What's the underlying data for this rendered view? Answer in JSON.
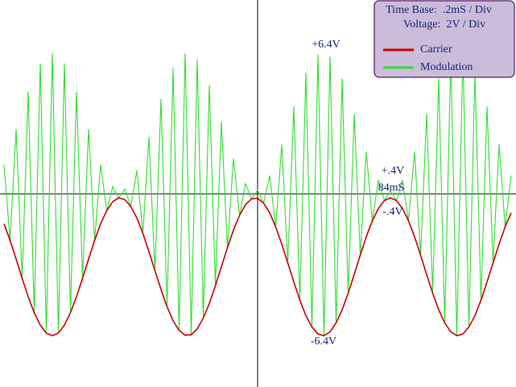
{
  "chart_data": {
    "type": "line",
    "time_base": "Time Base:  .2mS / Div",
    "voltage_scale": "Voltage:  2V / Div",
    "annotations": [
      "+6.4V",
      "+.4V",
      "84mS",
      "-.4V",
      "-6.4V"
    ],
    "xlim": [
      -1.0667,
      1.0667
    ],
    "ylim": [
      -7.97,
      8.03
    ],
    "x": [
      -1.05,
      -1.025,
      -1,
      -0.975,
      -0.95,
      -0.925,
      -0.9,
      -0.875,
      -0.85,
      -0.825,
      -0.8,
      -0.775,
      -0.75,
      -0.725,
      -0.7,
      -0.675,
      -0.65,
      -0.625,
      -0.6,
      -0.575,
      -0.55,
      -0.525,
      -0.5,
      -0.475,
      -0.45,
      -0.425,
      -0.4,
      -0.375,
      -0.35,
      -0.325,
      -0.3,
      -0.275,
      -0.25,
      -0.225,
      -0.2,
      -0.175,
      -0.15,
      -0.125,
      -0.1,
      -0.075,
      -0.05,
      -0.025,
      0,
      0.025,
      0.05,
      0.075,
      0.1,
      0.125,
      0.15,
      0.175,
      0.2,
      0.225,
      0.25,
      0.275,
      0.3,
      0.325,
      0.35,
      0.375,
      0.4,
      0.425,
      0.45,
      0.475,
      0.5,
      0.525,
      0.55,
      0.575,
      0.6,
      0.625,
      0.65,
      0.675,
      0.7,
      0.725,
      0.75,
      0.775,
      0.8,
      0.825,
      0.85,
      0.875,
      0.9,
      0.925,
      0.95,
      0.975,
      1,
      1.025,
      1.05
    ],
    "series": [
      {
        "name": "Modulation",
        "color": "#33dd33",
        "values": [
          1.22,
          -1.91,
          2.68,
          -3.48,
          4.24,
          -4.9,
          5.41,
          -5.74,
          5.85,
          -5.74,
          5.41,
          -4.9,
          4.24,
          -3.48,
          2.68,
          -1.91,
          1.22,
          -0.68,
          0.31,
          -0.15,
          0.22,
          -0.51,
          0.98,
          -1.62,
          2.37,
          -3.16,
          3.94,
          -4.65,
          5.23,
          -5.63,
          5.83,
          -5.81,
          5.57,
          -5.12,
          4.52,
          -3.79,
          3.0,
          -2.21,
          1.48,
          -0.88,
          0.43,
          -0.19,
          0.17,
          -0.37,
          0.77,
          -1.35,
          2.06,
          -2.84,
          3.63,
          -4.38,
          5.02,
          -5.49,
          5.78,
          -5.85,
          5.69,
          -5.32,
          4.78,
          -4.09,
          3.32,
          -2.52,
          1.76,
          -1.1,
          0.59,
          -0.26,
          0.15,
          -0.26,
          0.59,
          -1.1,
          1.76,
          -2.52,
          3.32,
          -4.09,
          4.78,
          -5.32,
          5.69,
          -5.85,
          5.78,
          -5.49,
          5.02,
          -4.38,
          3.63,
          -2.84,
          2.06,
          -1.35,
          0.77
        ]
      },
      {
        "name": "Carrier",
        "color": "#cc0000",
        "values": [
          -1.22,
          -1.91,
          -2.68,
          -3.48,
          -4.24,
          -4.9,
          -5.41,
          -5.74,
          -5.85,
          -5.74,
          -5.41,
          -4.9,
          -4.24,
          -3.48,
          -2.68,
          -1.91,
          -1.22,
          -0.68,
          -0.31,
          -0.15,
          -0.22,
          -0.51,
          -0.98,
          -1.62,
          -2.37,
          -3.16,
          -3.94,
          -4.65,
          -5.23,
          -5.63,
          -5.83,
          -5.81,
          -5.57,
          -5.12,
          -4.52,
          -3.79,
          -3.0,
          -2.21,
          -1.48,
          -0.88,
          -0.43,
          -0.19,
          -0.17,
          -0.37,
          -0.77,
          -1.35,
          -2.06,
          -2.84,
          -3.63,
          -4.38,
          -5.02,
          -5.49,
          -5.78,
          -5.85,
          -5.69,
          -5.32,
          -4.78,
          -4.09,
          -3.32,
          -2.52,
          -1.76,
          -1.1,
          -0.59,
          -0.26,
          -0.15,
          -0.26,
          -0.59,
          -1.1,
          -1.76,
          -2.52,
          -3.32,
          -4.09,
          -4.78,
          -5.32,
          -5.69,
          -5.85,
          -5.78,
          -5.49,
          -5.02,
          -4.38,
          -3.63,
          -2.84,
          -2.06,
          -1.35,
          -0.77
        ]
      }
    ]
  }
}
